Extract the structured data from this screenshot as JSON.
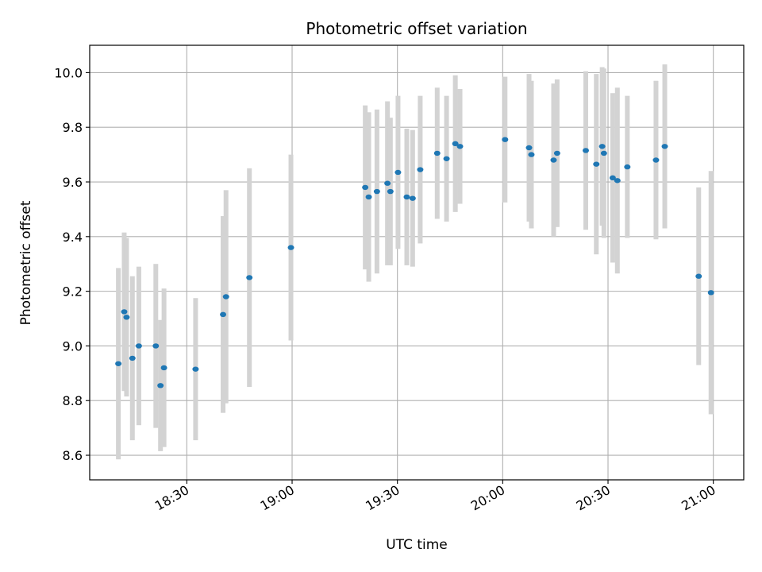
{
  "chart_data": {
    "type": "scatter",
    "title": "Photometric offset variation",
    "xlabel": "UTC time",
    "ylabel": "Photometric offset",
    "grid": true,
    "legend": "none",
    "xlim": [
      "18:02:20",
      "21:08:40"
    ],
    "ylim": [
      8.51,
      10.1
    ],
    "x_ticks": [
      "18:30",
      "19:00",
      "19:30",
      "20:00",
      "20:30",
      "21:00"
    ],
    "y_ticks": [
      "8.6",
      "8.8",
      "9.0",
      "9.2",
      "9.4",
      "9.6",
      "9.8",
      "10.0"
    ],
    "colors": {
      "point": "#1f77b4",
      "errorbar": "#d3d3d3",
      "grid": "#b0b0b0"
    },
    "series": [
      {
        "x": [
          "18:10:30",
          "18:12:10",
          "18:12:50",
          "18:14:30",
          "18:16:20",
          "18:21:10",
          "18:22:30",
          "18:23:30",
          "18:32:30",
          "18:40:20",
          "18:41:10",
          "18:47:50",
          "18:59:40",
          "19:20:50",
          "19:21:50",
          "19:24:10",
          "19:27:10",
          "19:28:00",
          "19:30:10",
          "19:32:40",
          "19:34:20",
          "19:36:30",
          "19:41:20",
          "19:44:00",
          "19:46:30",
          "19:47:50",
          "20:00:40",
          "20:07:30",
          "20:08:10",
          "20:14:30",
          "20:15:30",
          "20:23:40",
          "20:26:40",
          "20:28:20",
          "20:28:50",
          "20:31:20",
          "20:32:40",
          "20:35:30",
          "20:43:40",
          "20:46:10",
          "20:55:50",
          "20:59:20"
        ],
        "y": [
          8.935,
          9.125,
          9.105,
          8.955,
          9.0,
          9.0,
          8.855,
          8.92,
          8.915,
          9.115,
          9.18,
          9.25,
          9.36,
          9.58,
          9.545,
          9.565,
          9.595,
          9.565,
          9.635,
          9.545,
          9.54,
          9.645,
          9.705,
          9.685,
          9.74,
          9.73,
          9.755,
          9.725,
          9.7,
          9.68,
          9.705,
          9.715,
          9.665,
          9.73,
          9.705,
          9.615,
          9.605,
          9.655,
          9.68,
          9.73,
          9.255,
          9.195
        ],
        "yerr": [
          0.35,
          0.29,
          0.29,
          0.3,
          0.29,
          0.3,
          0.24,
          0.29,
          0.26,
          0.36,
          0.39,
          0.4,
          0.34,
          0.3,
          0.31,
          0.3,
          0.3,
          0.27,
          0.28,
          0.25,
          0.25,
          0.27,
          0.24,
          0.23,
          0.25,
          0.21,
          0.23,
          0.27,
          0.27,
          0.28,
          0.27,
          0.29,
          0.33,
          0.29,
          0.31,
          0.31,
          0.34,
          0.26,
          0.29,
          0.3,
          0.325,
          0.445
        ]
      }
    ]
  }
}
